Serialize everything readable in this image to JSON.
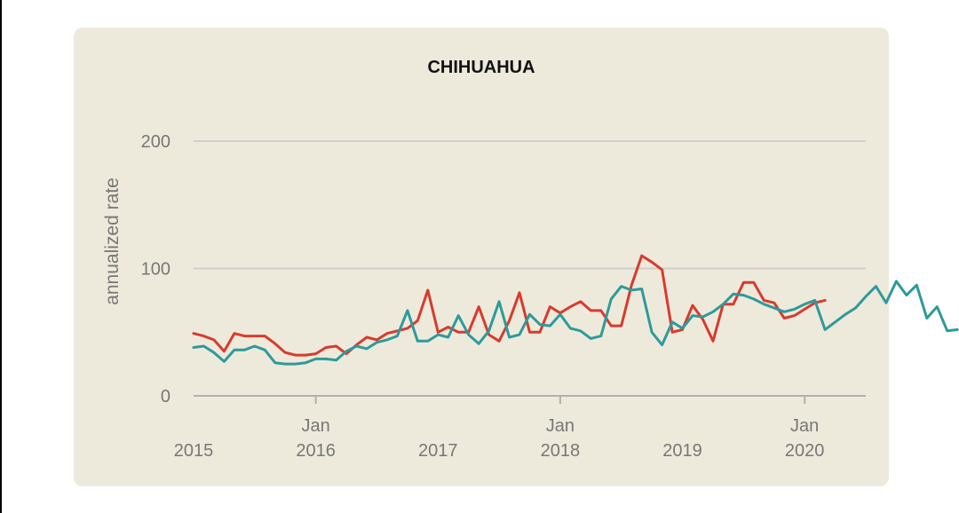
{
  "chart_data": {
    "type": "line",
    "title": "CHIHUAHUA",
    "xlabel": "",
    "ylabel": "annualized rate",
    "ylim": [
      0,
      200
    ],
    "xlim": [
      "2015-01",
      "2020-07"
    ],
    "grid": true,
    "yticks": [
      {
        "value": 0,
        "label": "0"
      },
      {
        "value": 100,
        "label": "100"
      },
      {
        "value": 200,
        "label": "200"
      }
    ],
    "xticks": [
      {
        "date": "2015-01",
        "lines": [
          "",
          "2015"
        ],
        "tick": false
      },
      {
        "date": "2016-01",
        "lines": [
          "Jan",
          "2016"
        ],
        "tick": true
      },
      {
        "date": "2017-01",
        "lines": [
          "",
          "2017"
        ],
        "tick": false
      },
      {
        "date": "2018-01",
        "lines": [
          "Jan",
          "2018"
        ],
        "tick": true
      },
      {
        "date": "2019-01",
        "lines": [
          "",
          "2019"
        ],
        "tick": false
      },
      {
        "date": "2020-01",
        "lines": [
          "Jan",
          "2020"
        ],
        "tick": true
      }
    ],
    "start": "2015-01",
    "series": [
      {
        "color": "#d93a2e",
        "values": [
          49,
          47,
          44,
          35,
          49,
          47,
          47,
          47,
          41,
          34,
          32,
          32,
          33,
          38,
          39,
          33,
          40,
          46,
          44,
          49,
          51,
          53,
          59,
          83,
          50,
          54,
          50,
          50,
          70,
          48,
          43,
          59,
          81,
          50,
          50,
          70,
          65,
          70,
          74,
          67,
          67,
          55,
          55,
          87,
          110,
          105,
          99,
          50,
          52,
          71,
          60,
          43,
          72,
          72,
          89,
          89,
          75,
          73,
          61,
          63,
          68,
          73,
          75
        ]
      },
      {
        "color": "#2e9a9a",
        "values": [
          38,
          39,
          34,
          27,
          36,
          36,
          39,
          36,
          26,
          25,
          25,
          26,
          29,
          29,
          28,
          35,
          39,
          37,
          42,
          44,
          47,
          67,
          43,
          43,
          48,
          46,
          63,
          48,
          41,
          51,
          74,
          46,
          48,
          64,
          56,
          55,
          64,
          53,
          51,
          45,
          47,
          76,
          86,
          83,
          84,
          50,
          40,
          58,
          53,
          63,
          62,
          66,
          72,
          80,
          79,
          76,
          72,
          69,
          66,
          68,
          72,
          75,
          52,
          58,
          64,
          69,
          78,
          86,
          73,
          90,
          79,
          87,
          61,
          70,
          51,
          52
        ]
      }
    ]
  }
}
